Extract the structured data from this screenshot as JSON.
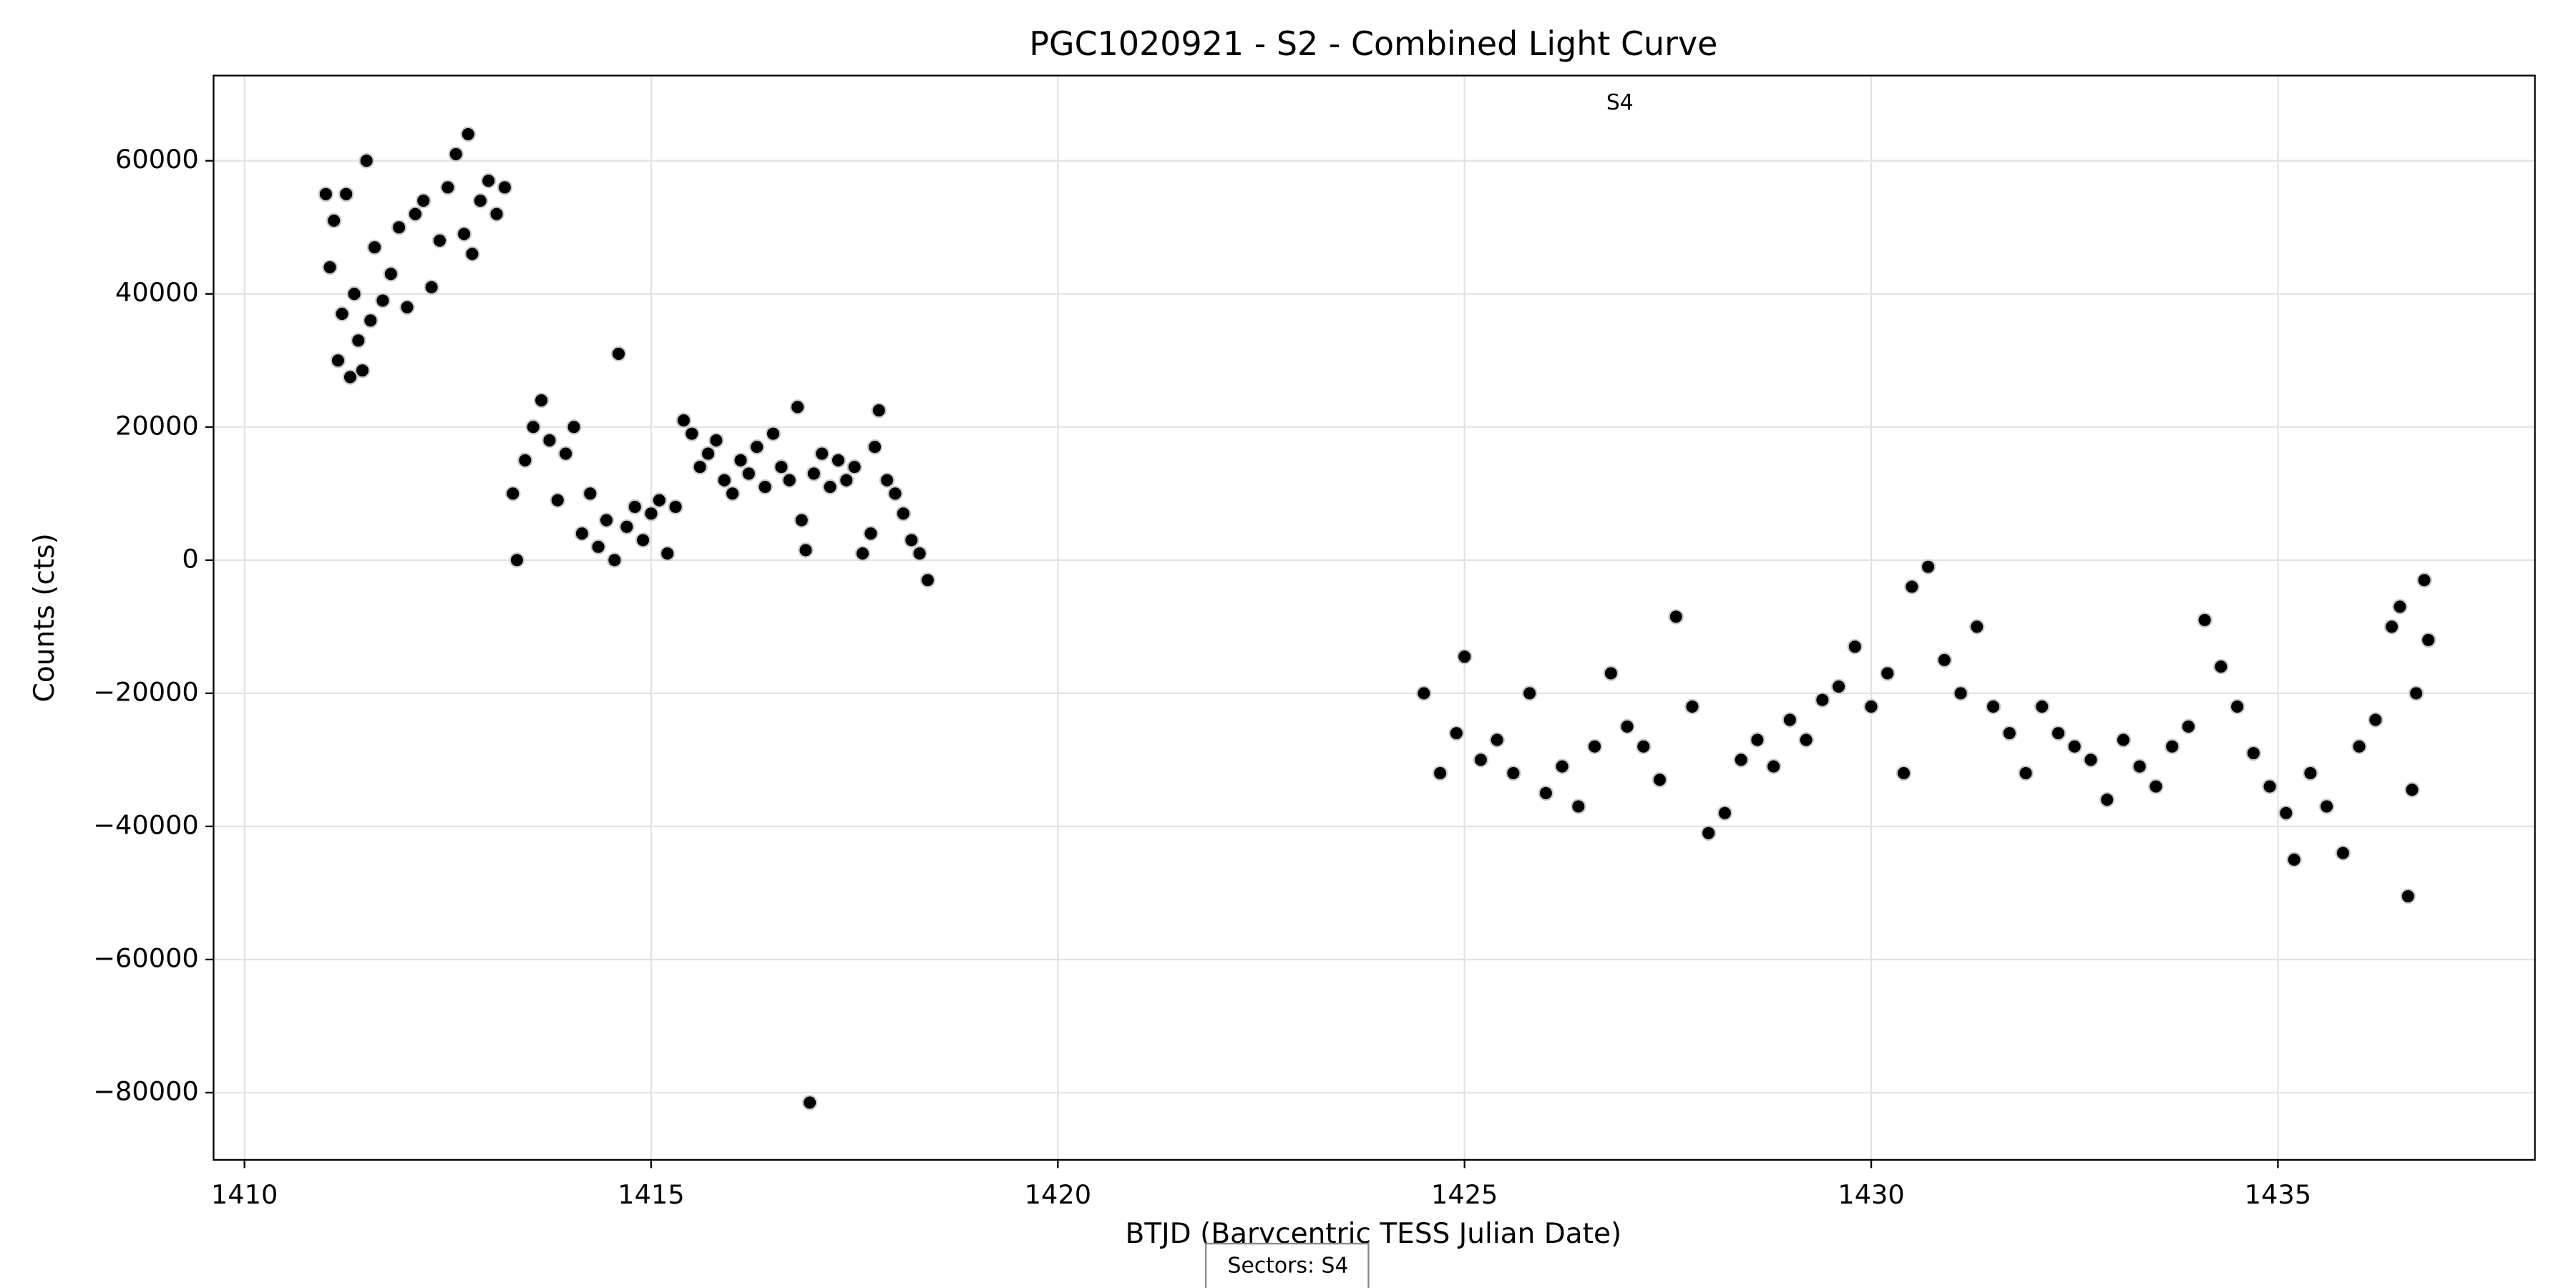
{
  "chart_data": {
    "type": "scatter",
    "title": "PGC1020921 - S2 - Combined Light Curve",
    "xlabel": "BTJD (Barycentric TESS Julian Date)",
    "ylabel": "Counts (cts)",
    "annotations": [
      "S4"
    ],
    "legend_box": "Sectors: S4",
    "color": "#000000",
    "grid": true,
    "xlim": [
      1409.62,
      1438.16
    ],
    "ylim": [
      -90100,
      72800
    ],
    "xticks": [
      1410,
      1415,
      1420,
      1425,
      1430,
      1435
    ],
    "yticks": [
      {
        "value": -80000,
        "label": "−80000"
      },
      {
        "value": -60000,
        "label": "−60000"
      },
      {
        "value": -40000,
        "label": "−40000"
      },
      {
        "value": -20000,
        "label": "−20000"
      },
      0,
      20000,
      40000,
      60000
    ],
    "x": [
      1411.0,
      1411.05,
      1411.1,
      1411.15,
      1411.2,
      1411.25,
      1411.3,
      1411.35,
      1411.4,
      1411.45,
      1411.5,
      1411.55,
      1411.6,
      1411.7,
      1411.8,
      1411.9,
      1412.0,
      1412.1,
      1412.2,
      1412.3,
      1412.4,
      1412.5,
      1412.6,
      1412.7,
      1412.75,
      1412.8,
      1412.9,
      1413.0,
      1413.1,
      1413.2,
      1413.3,
      1413.35,
      1413.45,
      1413.55,
      1413.65,
      1413.75,
      1413.85,
      1413.95,
      1414.05,
      1414.15,
      1414.25,
      1414.35,
      1414.45,
      1414.55,
      1414.6,
      1414.7,
      1414.8,
      1414.9,
      1415.0,
      1415.1,
      1415.2,
      1415.3,
      1415.4,
      1415.5,
      1415.6,
      1415.7,
      1415.8,
      1415.9,
      1416.0,
      1416.1,
      1416.2,
      1416.3,
      1416.4,
      1416.5,
      1416.6,
      1416.7,
      1416.8,
      1416.85,
      1416.9,
      1416.95,
      1417.0,
      1417.1,
      1417.2,
      1417.3,
      1417.4,
      1417.5,
      1417.6,
      1417.7,
      1417.75,
      1417.8,
      1417.9,
      1418.0,
      1418.1,
      1418.2,
      1418.3,
      1418.4,
      1424.5,
      1424.7,
      1424.9,
      1425.0,
      1425.2,
      1425.4,
      1425.6,
      1425.8,
      1426.0,
      1426.2,
      1426.4,
      1426.6,
      1426.8,
      1427.0,
      1427.2,
      1427.4,
      1427.6,
      1427.8,
      1428.0,
      1428.2,
      1428.4,
      1428.6,
      1428.8,
      1429.0,
      1429.2,
      1429.4,
      1429.6,
      1429.8,
      1430.0,
      1430.2,
      1430.4,
      1430.5,
      1430.7,
      1430.9,
      1431.1,
      1431.3,
      1431.5,
      1431.7,
      1431.9,
      1432.1,
      1432.3,
      1432.5,
      1432.7,
      1432.9,
      1433.1,
      1433.3,
      1433.5,
      1433.7,
      1433.9,
      1434.1,
      1434.3,
      1434.5,
      1434.7,
      1434.9,
      1435.1,
      1435.2,
      1435.4,
      1435.6,
      1435.8,
      1436.0,
      1436.2,
      1436.4,
      1436.5,
      1436.6,
      1436.65,
      1436.7,
      1436.8,
      1436.85
    ],
    "values": [
      55000,
      44000,
      51000,
      30000,
      37000,
      55000,
      27500,
      40000,
      33000,
      28500,
      60000,
      36000,
      47000,
      39000,
      43000,
      50000,
      38000,
      52000,
      54000,
      41000,
      48000,
      56000,
      61000,
      49000,
      64000,
      46000,
      54000,
      57000,
      52000,
      56000,
      10000,
      0,
      15000,
      20000,
      24000,
      18000,
      9000,
      16000,
      20000,
      4000,
      10000,
      2000,
      6000,
      0,
      31000,
      5000,
      8000,
      3000,
      7000,
      9000,
      1000,
      8000,
      21000,
      19000,
      14000,
      16000,
      18000,
      12000,
      10000,
      15000,
      13000,
      17000,
      11000,
      19000,
      14000,
      12000,
      23000,
      6000,
      1500,
      -81500,
      13000,
      16000,
      11000,
      15000,
      12000,
      14000,
      1000,
      4000,
      17000,
      22500,
      12000,
      10000,
      7000,
      3000,
      1000,
      -3000,
      -20000,
      -32000,
      -26000,
      -14500,
      -30000,
      -27000,
      -32000,
      -20000,
      -35000,
      -31000,
      -37000,
      -28000,
      -17000,
      -25000,
      -28000,
      -33000,
      -8500,
      -22000,
      -41000,
      -38000,
      -30000,
      -27000,
      -31000,
      -24000,
      -27000,
      -21000,
      -19000,
      -13000,
      -22000,
      -17000,
      -32000,
      -4000,
      -1000,
      -15000,
      -20000,
      -10000,
      -22000,
      -26000,
      -32000,
      -22000,
      -26000,
      -28000,
      -30000,
      -36000,
      -27000,
      -31000,
      -34000,
      -28000,
      -25000,
      -9000,
      -16000,
      -22000,
      -29000,
      -34000,
      -38000,
      -45000,
      -32000,
      -37000,
      -44000,
      -28000,
      -24000,
      -10000,
      -7000,
      -50500,
      -34500,
      -20000,
      -3000,
      -12000
    ]
  }
}
